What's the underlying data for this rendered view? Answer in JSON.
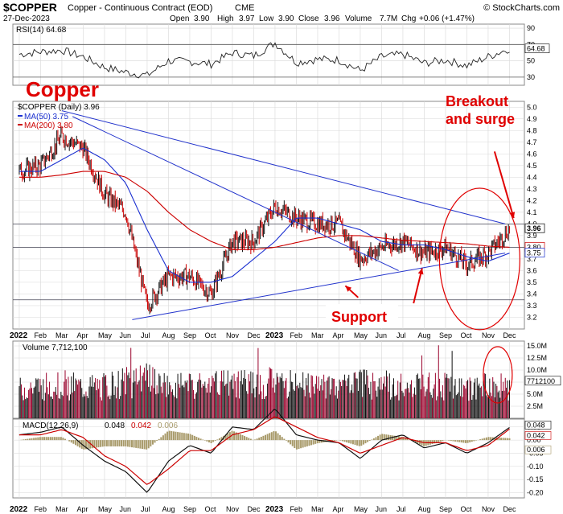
{
  "header": {
    "symbol": "$COPPER",
    "name": "Copper - Continuous Contract (EOD)",
    "exchange": "CME",
    "brand": "© StockCharts.com",
    "date": "27-Dec-2023",
    "open_label": "Open",
    "open": "3.90",
    "high_label": "High",
    "high": "3.97",
    "low_label": "Low",
    "low": "3.90",
    "close_label": "Close",
    "close": "3.96",
    "volume_label": "Volume",
    "volume": "7.7M",
    "chg_label": "Chg",
    "chg": "+0.06 (+1.47%)"
  },
  "annotations": {
    "title": "Copper",
    "breakout_line1": "Breakout",
    "breakout_line2": "and surge",
    "support": "Support"
  },
  "colors": {
    "price_up": "#111111",
    "price_down": "#cc0000",
    "ma50": "#1a2fd0",
    "ma200": "#cc0000",
    "trendline": "#2233cc",
    "annotation_red": "#e00000",
    "grid": "#d8d8d8",
    "volume_up": "#111111",
    "volume_down": "#99002a",
    "macd_line": "#111111",
    "signal_line": "#cc0000",
    "histogram": "#a89a6a"
  },
  "x_months": [
    "2022",
    "Feb",
    "Mar",
    "Apr",
    "May",
    "Jun",
    "Jul",
    "Aug",
    "Sep",
    "Oct",
    "Nov",
    "Dec",
    "2023",
    "Feb",
    "Mar",
    "Apr",
    "May",
    "Jun",
    "Jul",
    "Aug",
    "Sep",
    "Oct",
    "Nov",
    "Dec"
  ],
  "chart_data": [
    {
      "type": "line",
      "panel": "RSI",
      "title": "RSI(14) 64.68",
      "ylim": [
        20,
        95
      ],
      "yticks": [
        90,
        70,
        50,
        30
      ],
      "current_value": 64.68,
      "current_label": "64.68",
      "overbought": 70,
      "oversold": 30,
      "series": [
        {
          "name": "RSI(14)",
          "x": [
            "2022-01",
            "2022-02",
            "2022-03",
            "2022-04",
            "2022-05",
            "2022-06",
            "2022-07",
            "2022-08",
            "2022-09",
            "2022-10",
            "2022-11",
            "2022-12",
            "2023-01",
            "2023-02",
            "2023-03",
            "2023-04",
            "2023-05",
            "2023-06",
            "2023-07",
            "2023-08",
            "2023-09",
            "2023-10",
            "2023-11",
            "2023-12"
          ],
          "values": [
            58,
            61,
            63,
            55,
            42,
            36,
            32,
            50,
            49,
            46,
            60,
            56,
            72,
            48,
            52,
            51,
            38,
            55,
            58,
            47,
            51,
            44,
            55,
            65
          ]
        }
      ]
    },
    {
      "type": "line",
      "panel": "Price",
      "title": "$COPPER (Daily) 3.96",
      "ylim": [
        3.1,
        5.05
      ],
      "yticks": [
        5.0,
        4.9,
        4.8,
        4.7,
        4.6,
        4.5,
        4.4,
        4.3,
        4.2,
        4.1,
        4.0,
        3.9,
        3.8,
        3.7,
        3.6,
        3.5,
        3.4,
        3.3,
        3.2
      ],
      "x": [
        "2022-01",
        "2022-02",
        "2022-03",
        "2022-04",
        "2022-05",
        "2022-06",
        "2022-07",
        "2022-08",
        "2022-09",
        "2022-10",
        "2022-11",
        "2022-12",
        "2023-01",
        "2023-02",
        "2023-03",
        "2023-04",
        "2023-05",
        "2023-06",
        "2023-07",
        "2023-08",
        "2023-09",
        "2023-10",
        "2023-11",
        "2023-12"
      ],
      "series": [
        {
          "name": "$COPPER",
          "values": [
            4.45,
            4.5,
            4.75,
            4.65,
            4.25,
            4.1,
            3.3,
            3.55,
            3.55,
            3.4,
            3.85,
            3.85,
            4.15,
            4.05,
            4.0,
            4.0,
            3.7,
            3.8,
            3.85,
            3.75,
            3.8,
            3.65,
            3.75,
            3.96
          ]
        },
        {
          "name": "MA(50) 3.75",
          "values": [
            4.45,
            4.45,
            4.55,
            4.65,
            4.55,
            4.35,
            3.95,
            3.6,
            3.5,
            3.5,
            3.55,
            3.7,
            3.85,
            4.05,
            4.05,
            4.0,
            3.95,
            3.85,
            3.82,
            3.82,
            3.78,
            3.72,
            3.68,
            3.75
          ]
        },
        {
          "name": "MA(200) 3.80",
          "values": [
            4.4,
            4.4,
            4.42,
            4.45,
            4.45,
            4.4,
            4.28,
            4.1,
            3.95,
            3.85,
            3.78,
            3.78,
            3.8,
            3.84,
            3.88,
            3.9,
            3.9,
            3.88,
            3.86,
            3.85,
            3.84,
            3.83,
            3.81,
            3.8
          ]
        }
      ],
      "last_value_labels": [
        "3.96",
        "3.80",
        "3.75"
      ],
      "legend": [
        "MA(50) 3.75",
        "MA(200) 3.80"
      ]
    },
    {
      "type": "bar",
      "panel": "Volume",
      "title": "Volume 7,712,100",
      "ylim": [
        0,
        16
      ],
      "yticks_labels": [
        "15.0M",
        "12.5M",
        "10.0M",
        "7.5M",
        "5.0M",
        "2.5M"
      ],
      "yticks": [
        15.0,
        12.5,
        10.0,
        7.5,
        5.0,
        2.5
      ],
      "current_label": "7712100",
      "series": [
        {
          "name": "Volume (M)",
          "x": [
            "2022-01",
            "2022-02",
            "2022-03",
            "2022-04",
            "2022-05",
            "2022-06",
            "2022-07",
            "2022-08",
            "2022-09",
            "2022-10",
            "2022-11",
            "2022-12",
            "2023-01",
            "2023-02",
            "2023-03",
            "2023-04",
            "2023-05",
            "2023-06",
            "2023-07",
            "2023-08",
            "2023-09",
            "2023-10",
            "2023-11",
            "2023-12"
          ],
          "values": [
            7.0,
            8.0,
            8.5,
            7.5,
            8.0,
            9.0,
            9.5,
            8.0,
            8.0,
            8.0,
            9.0,
            8.5,
            9.0,
            8.5,
            9.0,
            8.0,
            8.5,
            8.5,
            8.0,
            8.0,
            8.0,
            7.5,
            8.0,
            7.7
          ]
        }
      ]
    },
    {
      "type": "line",
      "panel": "MACD",
      "title": "MACD(12,26,9)",
      "values_label": "0.048, 0.042, 0.006",
      "value_macd": "0.048",
      "value_signal": "0.042",
      "value_hist": "0.006",
      "ylim": [
        -0.22,
        0.08
      ],
      "yticks": [
        0.05,
        0.0,
        -0.05,
        -0.1,
        -0.15,
        -0.2
      ],
      "yticks_labels": [
        "0.05",
        "0.00",
        "-0.05",
        "-0.10",
        "-0.15",
        "-0.20"
      ],
      "current_labels": [
        "0.048",
        "0.042",
        "0.006"
      ],
      "series": [
        {
          "name": "MACD",
          "x": [
            "2022-01",
            "2022-02",
            "2022-03",
            "2022-04",
            "2022-05",
            "2022-06",
            "2022-07",
            "2022-08",
            "2022-09",
            "2022-10",
            "2022-11",
            "2022-12",
            "2023-01",
            "2023-02",
            "2023-03",
            "2023-04",
            "2023-05",
            "2023-06",
            "2023-07",
            "2023-08",
            "2023-09",
            "2023-10",
            "2023-11",
            "2023-12"
          ],
          "values": [
            0.02,
            0.03,
            0.05,
            -0.02,
            -0.08,
            -0.12,
            -0.2,
            -0.08,
            -0.02,
            -0.05,
            0.05,
            0.04,
            0.12,
            0.02,
            0.0,
            -0.01,
            -0.07,
            0.0,
            0.02,
            -0.03,
            -0.01,
            -0.05,
            -0.01,
            0.048
          ]
        },
        {
          "name": "Signal",
          "values": [
            0.02,
            0.02,
            0.04,
            0.01,
            -0.06,
            -0.1,
            -0.17,
            -0.11,
            -0.04,
            -0.04,
            0.02,
            0.04,
            0.09,
            0.05,
            0.01,
            -0.01,
            -0.05,
            -0.02,
            0.01,
            -0.01,
            -0.01,
            -0.04,
            -0.02,
            0.042
          ]
        }
      ]
    }
  ]
}
